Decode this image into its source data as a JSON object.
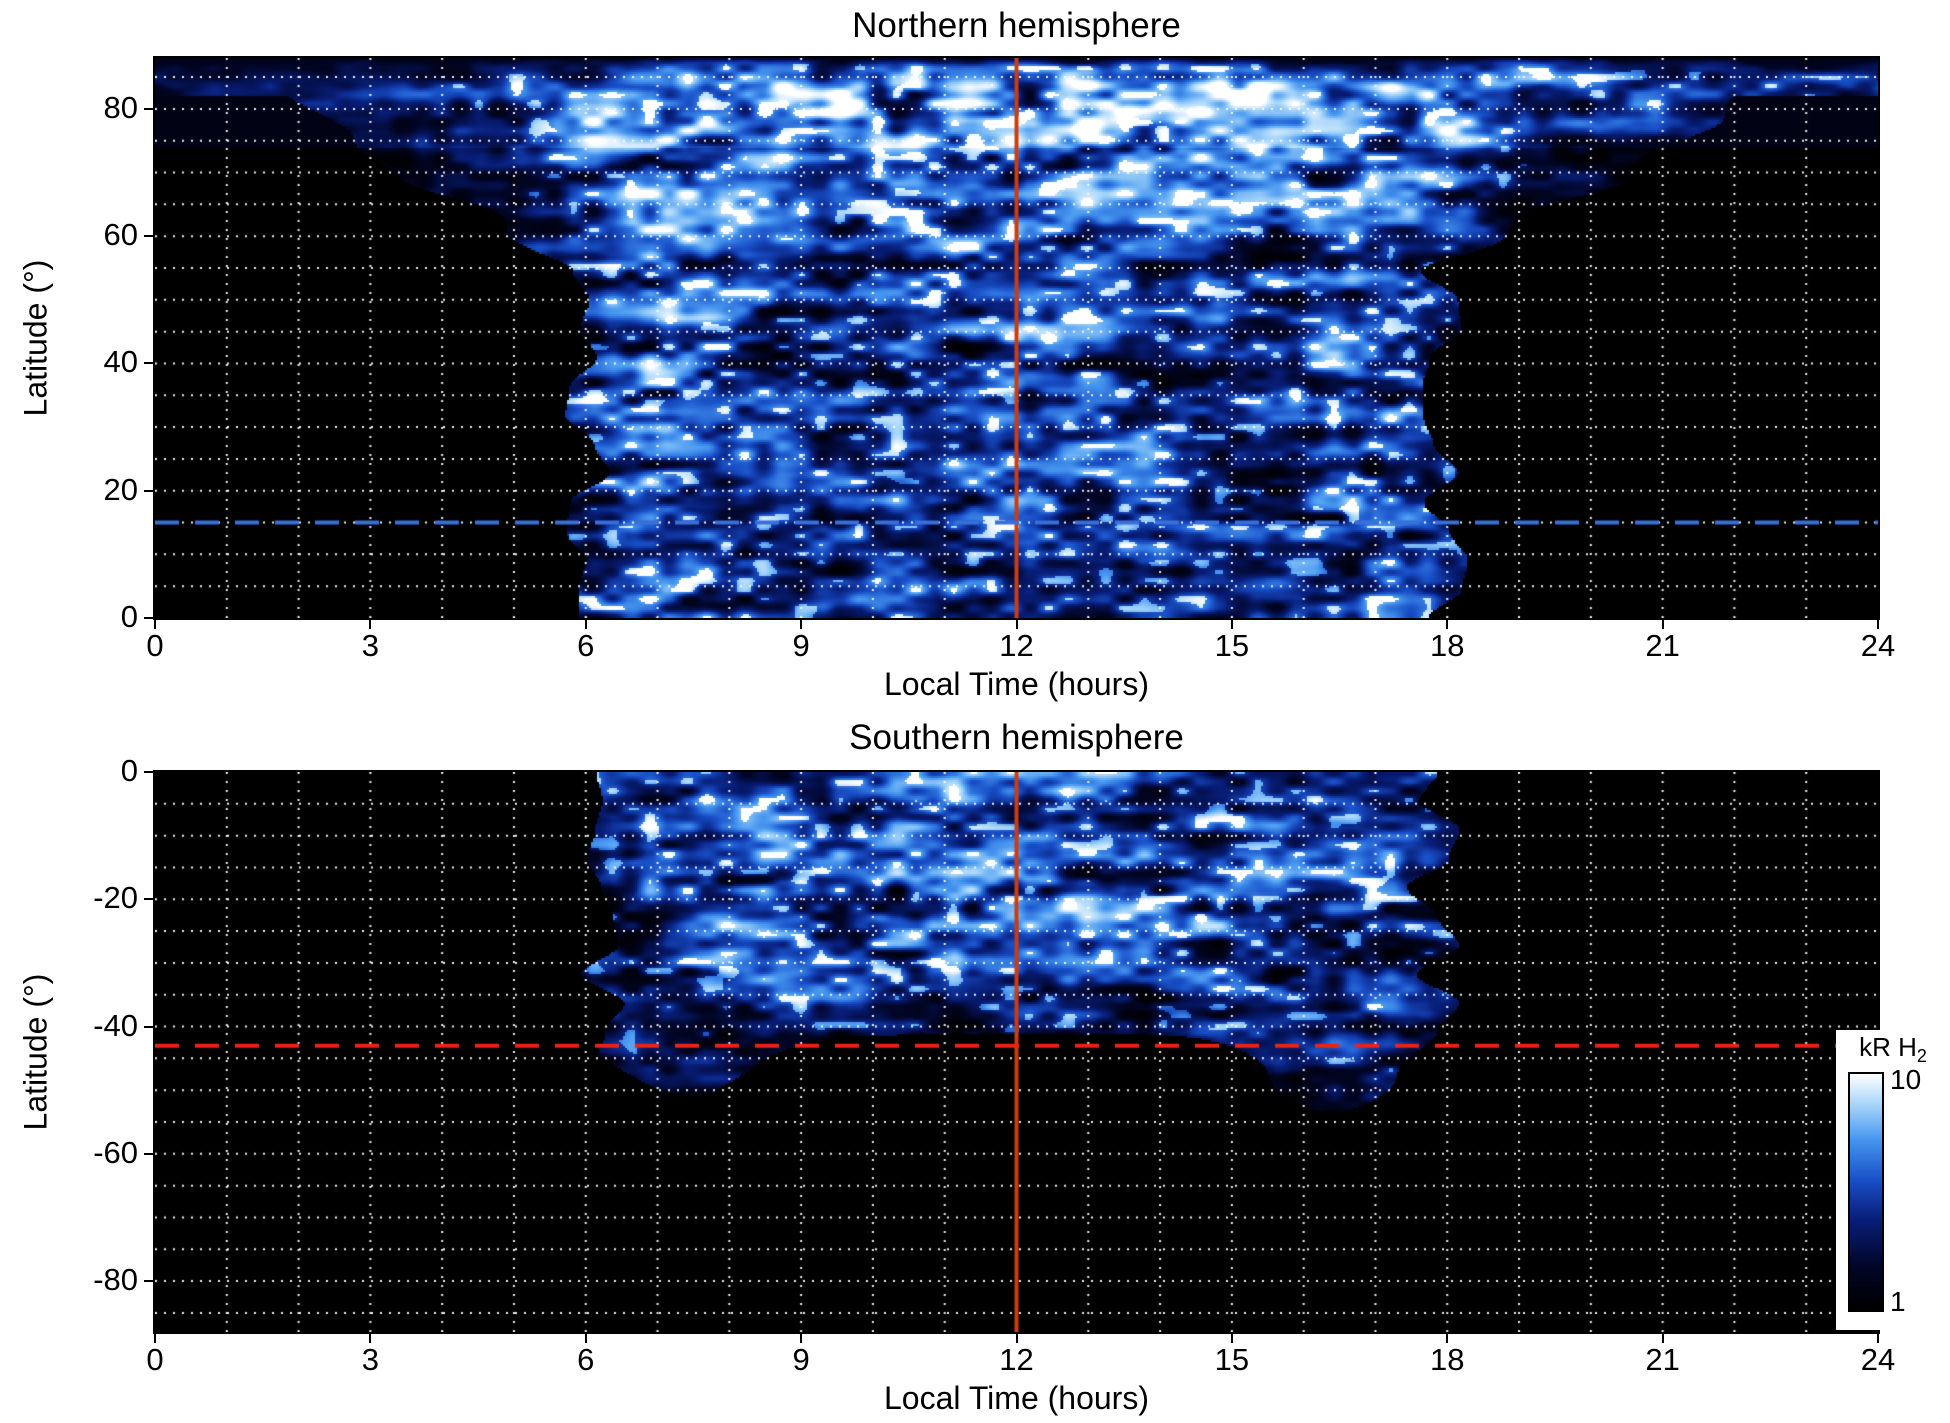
{
  "colorbar": {
    "label": "kR H",
    "label_sub": "2",
    "max_label": "10",
    "min_label": "1",
    "scale": "log"
  },
  "colors": {
    "page_background": "#ffffff",
    "plot_background": "#000000",
    "grid": "#ffffff",
    "axis": "#000000",
    "reference_orange": "#cf3b0c",
    "reference_blue": "#3a6fd8",
    "reference_red": "#ee2211",
    "colormap_stops": [
      [
        "0.00",
        "#000000"
      ],
      [
        "0.18",
        "#020628"
      ],
      [
        "0.38",
        "#081e78"
      ],
      [
        "0.55",
        "#1950c8"
      ],
      [
        "0.72",
        "#4696f0"
      ],
      [
        "0.86",
        "#a0d2fa"
      ],
      [
        "1.00",
        "#ffffff"
      ]
    ]
  },
  "chart_data": [
    {
      "type": "heatmap",
      "id": "north",
      "title": "Northern hemisphere",
      "xlabel": "Local Time (hours)",
      "ylabel": "Latitude (°)",
      "x_range": [
        0,
        24
      ],
      "y_range": [
        0,
        88
      ],
      "x_ticks": [
        0,
        3,
        6,
        9,
        12,
        15,
        18,
        21,
        24
      ],
      "y_ticks": [
        0,
        20,
        40,
        60,
        80
      ],
      "grid": {
        "x_step": 1,
        "y_step": 5,
        "style": "dotted"
      },
      "value_scale": "log",
      "value_range": [
        1,
        10
      ],
      "ref_lines": [
        {
          "orient": "v",
          "value": 12,
          "style": "solid",
          "color_key": "reference_orange"
        },
        {
          "orient": "h",
          "value": 15,
          "style": "dashed",
          "color_key": "reference_blue"
        }
      ],
      "lt_bin_edges": [
        0,
        2,
        4,
        6,
        8,
        10,
        12,
        14,
        16,
        18,
        20,
        22,
        24
      ],
      "lat_bin_edges": [
        0,
        10,
        20,
        30,
        40,
        50,
        60,
        70,
        80,
        90
      ],
      "values_kR": [
        [
          1,
          1,
          1.2,
          5.0,
          3.2,
          4.0,
          4.2,
          3.2,
          4.2,
          1,
          1,
          1
        ],
        [
          1,
          1,
          1.2,
          5.2,
          3.4,
          4.0,
          4.2,
          3.4,
          4.6,
          1,
          1,
          1
        ],
        [
          1,
          1,
          1.3,
          5.4,
          3.6,
          4.2,
          4.4,
          3.4,
          4.6,
          1,
          1,
          1
        ],
        [
          1,
          1,
          1.3,
          5.6,
          3.8,
          4.4,
          4.4,
          3.6,
          4.8,
          1,
          1,
          1
        ],
        [
          1,
          1,
          1.5,
          5.8,
          4.0,
          4.4,
          4.6,
          3.6,
          5.0,
          1.2,
          1,
          1
        ],
        [
          1,
          1,
          1.6,
          6.0,
          4.2,
          4.6,
          4.8,
          4.0,
          5.4,
          1.3,
          1,
          1
        ],
        [
          1,
          1.1,
          2.0,
          6.0,
          4.0,
          4.6,
          5.0,
          4.4,
          6.0,
          1.6,
          1,
          1
        ],
        [
          1,
          1.4,
          2.6,
          6.4,
          5.0,
          5.6,
          6.0,
          5.6,
          6.6,
          3.0,
          1.5,
          1.2
        ],
        [
          1.6,
          2.2,
          3.2,
          6.0,
          7.0,
          8.2,
          8.2,
          7.6,
          7.0,
          5.0,
          3.6,
          3.0
        ]
      ],
      "day_window": [
        6.0,
        18.0
      ],
      "polar_spread_start": 55,
      "lat_cutoff": null,
      "noise_seed": 7
    },
    {
      "type": "heatmap",
      "id": "south",
      "title": "Southern hemisphere",
      "xlabel": "Local Time (hours)",
      "ylabel": "Latitude (°)",
      "x_range": [
        0,
        24
      ],
      "y_range": [
        -88,
        0
      ],
      "x_ticks": [
        0,
        3,
        6,
        9,
        12,
        15,
        18,
        21,
        24
      ],
      "y_ticks": [
        0,
        -20,
        -40,
        -60,
        -80
      ],
      "grid": {
        "x_step": 1,
        "y_step": 5,
        "style": "dotted"
      },
      "value_scale": "log",
      "value_range": [
        1,
        10
      ],
      "ref_lines": [
        {
          "orient": "v",
          "value": 12,
          "style": "solid",
          "color_key": "reference_orange"
        },
        {
          "orient": "h",
          "value": -43,
          "style": "dashed",
          "color_key": "reference_red"
        }
      ],
      "lt_bin_edges": [
        0,
        2,
        4,
        6,
        8,
        10,
        12,
        14,
        16,
        18,
        20,
        22,
        24
      ],
      "lat_bin_edges": [
        0,
        -10,
        -20,
        -30,
        -40,
        -50,
        -60,
        -70,
        -80,
        -90
      ],
      "values_kR": [
        [
          1,
          1,
          1.1,
          4.2,
          4.2,
          4.6,
          4.6,
          4.2,
          3.6,
          1,
          1,
          1
        ],
        [
          1,
          1,
          1.1,
          4.6,
          4.6,
          5.2,
          5.0,
          4.6,
          4.0,
          1,
          1,
          1
        ],
        [
          1,
          1,
          1.1,
          4.2,
          4.6,
          5.4,
          5.0,
          4.6,
          4.0,
          1,
          1,
          1
        ],
        [
          1,
          1,
          1.0,
          3.8,
          3.6,
          4.2,
          4.0,
          3.6,
          4.0,
          1,
          1,
          1
        ],
        [
          1,
          1,
          1.0,
          2.6,
          1.4,
          1.2,
          1.2,
          1.4,
          3.0,
          1,
          1,
          1
        ],
        [
          1,
          1,
          1,
          1.3,
          1,
          1,
          1,
          1,
          1.4,
          1,
          1,
          1
        ],
        [
          1,
          1,
          1,
          1,
          1,
          1,
          1,
          1,
          1,
          1,
          1,
          1
        ],
        [
          1,
          1,
          1,
          1,
          1,
          1,
          1,
          1,
          1,
          1,
          1,
          1
        ],
        [
          1,
          1,
          1,
          1,
          1,
          1,
          1,
          1,
          1,
          1,
          1,
          1
        ]
      ],
      "day_window": [
        6.2,
        17.8
      ],
      "polar_spread_start": null,
      "lat_cutoff": {
        "base": 41,
        "arcs": [
          {
            "lt": 7.4,
            "sigma": 1.2,
            "extend": 11
          },
          {
            "lt": 16.4,
            "sigma": 1.1,
            "extend": 14
          }
        ]
      },
      "noise_seed": 13
    }
  ]
}
